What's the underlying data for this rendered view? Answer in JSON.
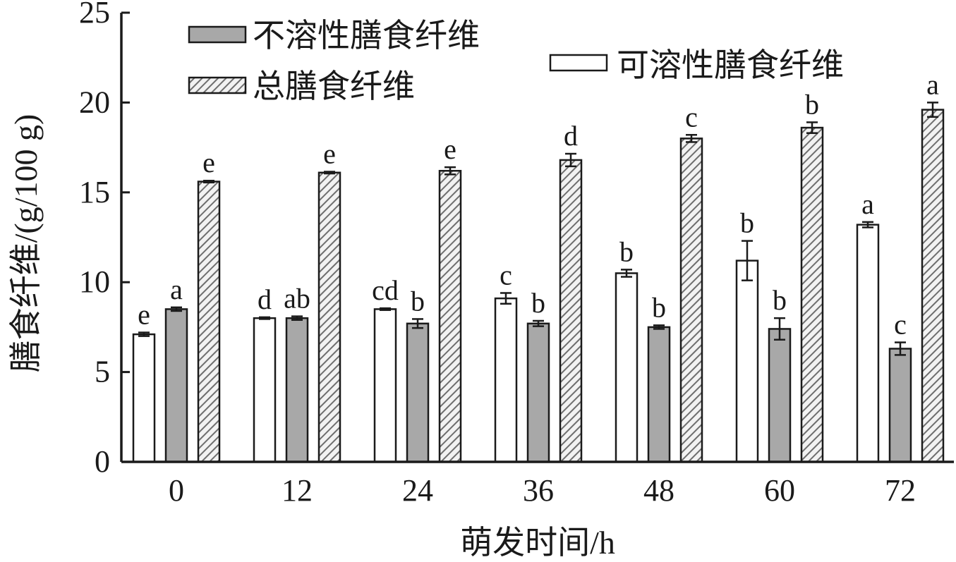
{
  "chart_data": {
    "type": "bar",
    "xlabel": "萌发时间/h",
    "ylabel": "膳食纤维/(g/100 g)",
    "ylim": [
      0,
      25
    ],
    "yticks": [
      "0",
      "5",
      "10",
      "15",
      "20",
      "25"
    ],
    "categories": [
      "0",
      "12",
      "24",
      "36",
      "48",
      "60",
      "72"
    ],
    "grid": false,
    "series": [
      {
        "name": "可溶性膳食纤维",
        "fill": "white",
        "values": [
          7.1,
          8.0,
          8.5,
          9.1,
          10.5,
          11.2,
          13.2
        ],
        "errors": [
          0.1,
          0.05,
          0.05,
          0.3,
          0.2,
          1.1,
          0.15
        ],
        "labels": [
          "e",
          "d",
          "cd",
          "c",
          "b",
          "b",
          "a"
        ]
      },
      {
        "name": "不溶性膳食纤维",
        "fill": "gray",
        "values": [
          8.5,
          8.0,
          7.7,
          7.7,
          7.5,
          7.4,
          6.3
        ],
        "errors": [
          0.1,
          0.1,
          0.25,
          0.15,
          0.1,
          0.6,
          0.35
        ],
        "labels": [
          "a",
          "ab",
          "b",
          "b",
          "b",
          "b",
          "c"
        ]
      },
      {
        "name": "总膳食纤维",
        "fill": "hatch",
        "values": [
          15.6,
          16.1,
          16.2,
          16.8,
          18.0,
          18.6,
          19.6
        ],
        "errors": [
          0.05,
          0.05,
          0.2,
          0.35,
          0.2,
          0.3,
          0.4
        ],
        "labels": [
          "e",
          "e",
          "e",
          "d",
          "c",
          "b",
          "a"
        ]
      }
    ],
    "colors": {
      "axis": "#1a1a1a",
      "white_bar": "#ffffff",
      "gray_bar": "#a8a8a8",
      "hatch_bg": "#f2f2f2",
      "hatch_line": "#6e6e6e"
    },
    "legend_position": "top-left"
  }
}
